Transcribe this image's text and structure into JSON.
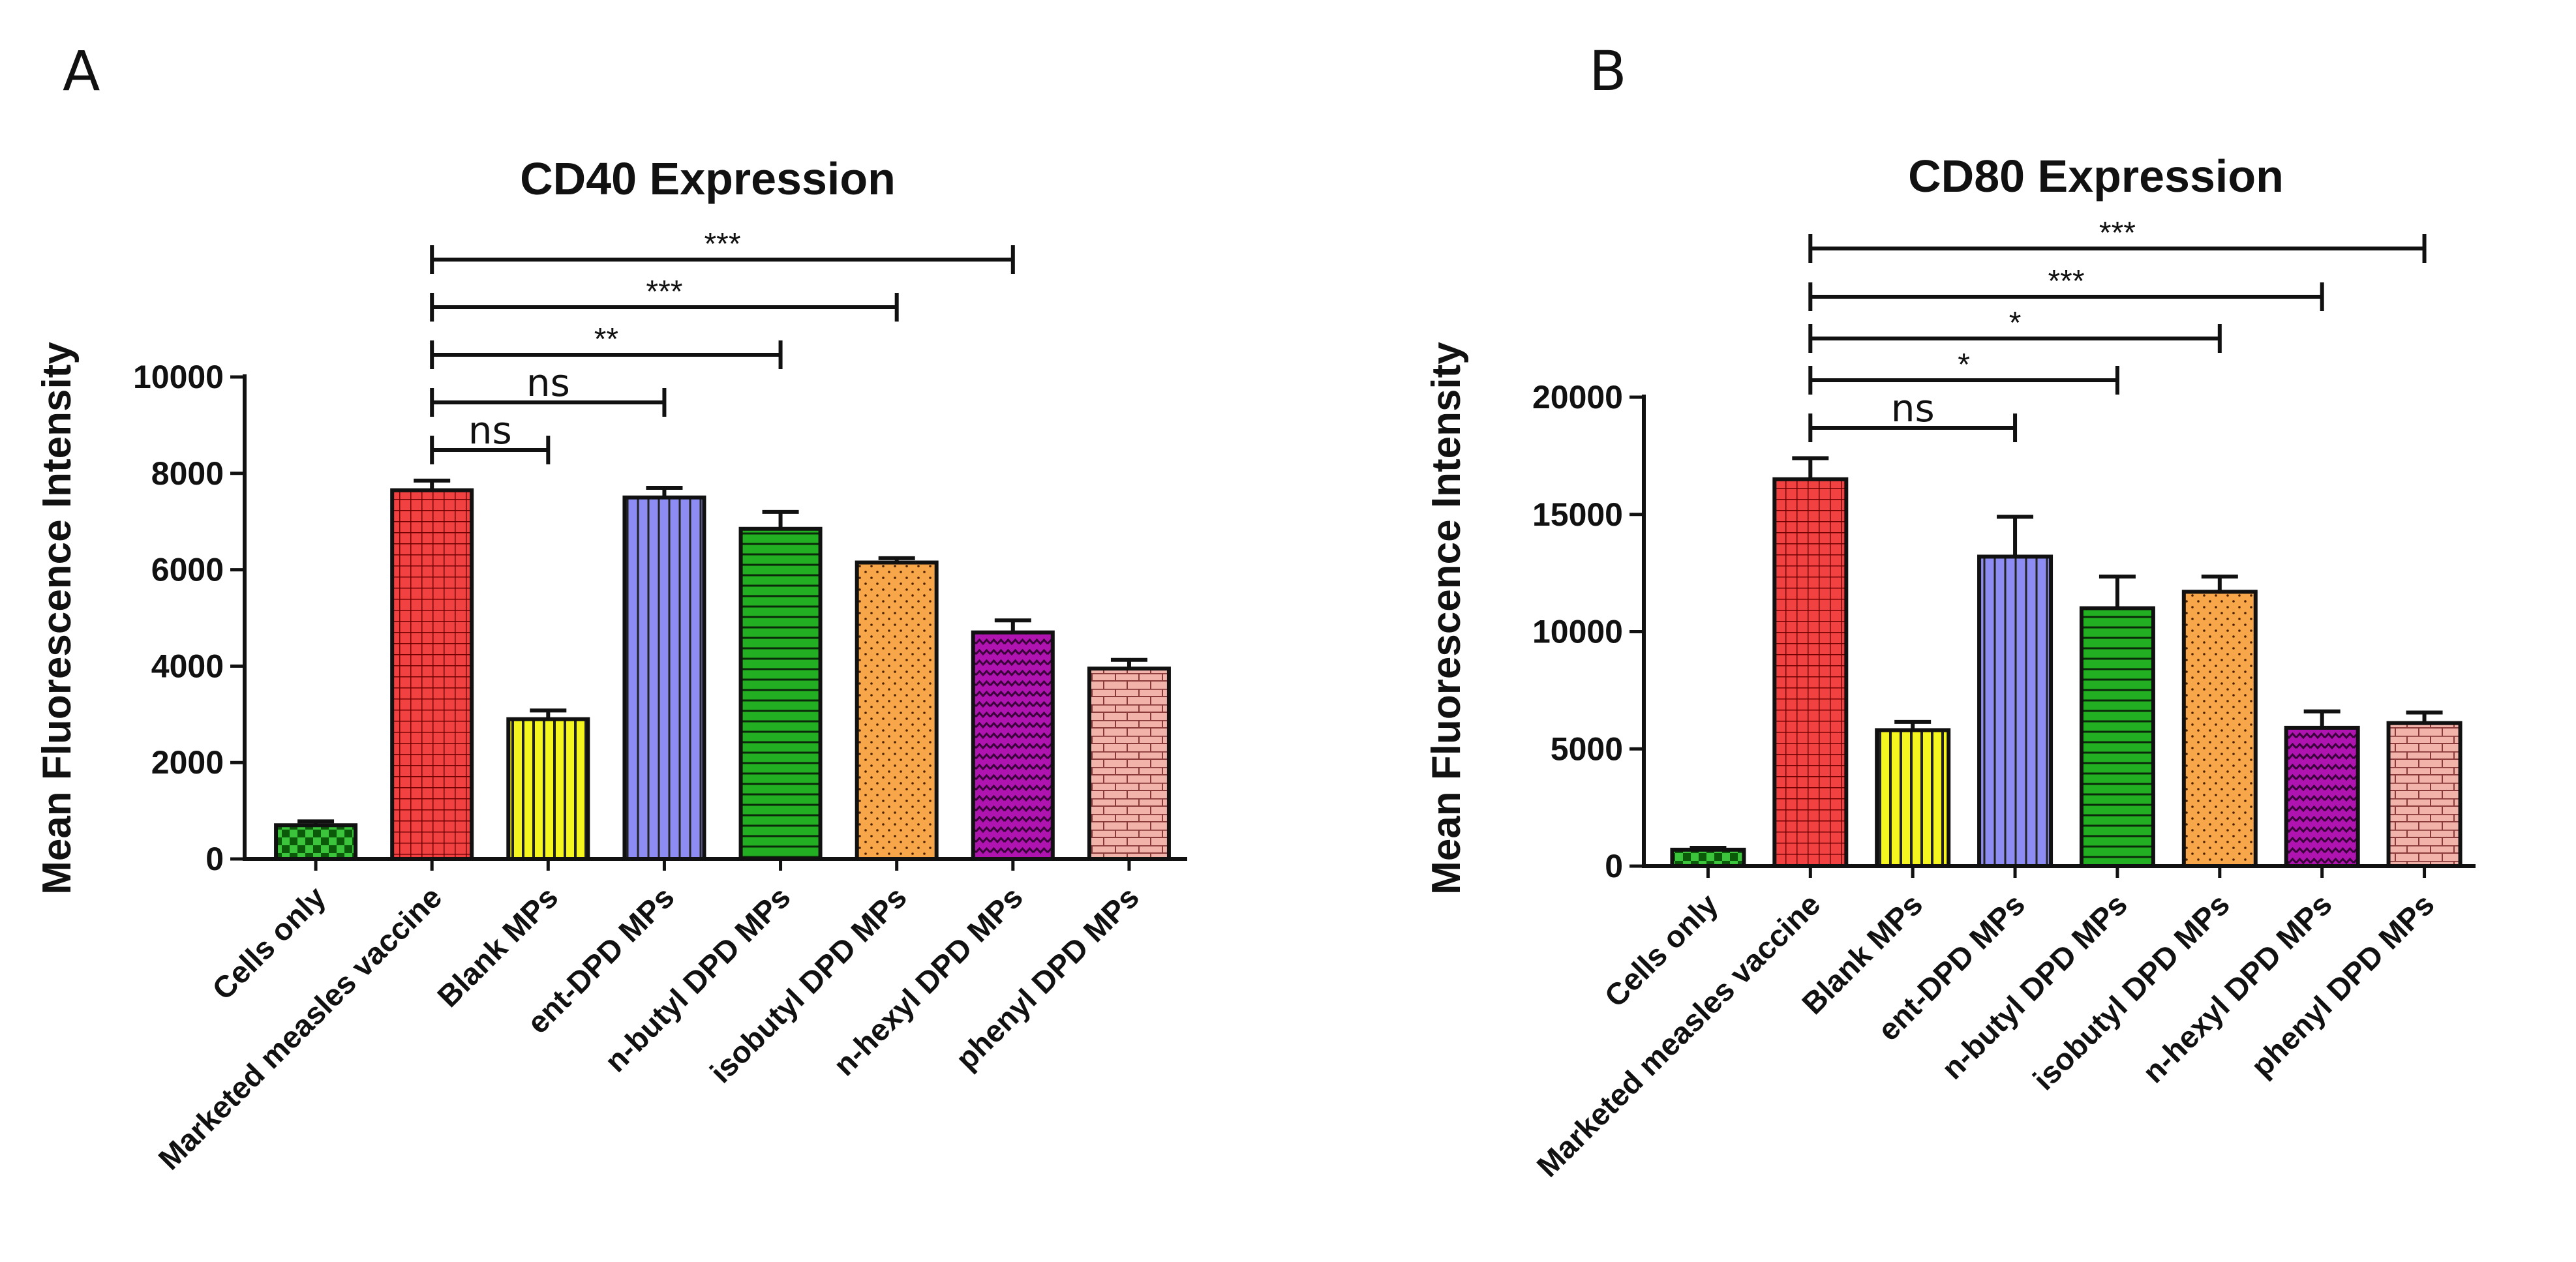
{
  "panels": {
    "a": {
      "letter": "A"
    },
    "b": {
      "letter": "B"
    }
  },
  "chart_data": [
    {
      "type": "bar",
      "title": "CD40 Expression",
      "ylabel": "Mean Fluorescence Intensity",
      "ylim": [
        0,
        10000
      ],
      "yticks": [
        "0",
        "2000",
        "4000",
        "6000",
        "8000",
        "10000"
      ],
      "categories": [
        "Cells only",
        "Marketed measles vaccine",
        "Blank MPs",
        "ent-DPD MPs",
        "n-butyl DPD MPs",
        "isobutyl DPD MPs",
        "n-hexyl DPD MPs",
        "phenyl DPD MPs"
      ],
      "values": [
        700,
        7650,
        2900,
        7500,
        6850,
        6150,
        4700,
        3950
      ],
      "errors": [
        80,
        200,
        180,
        200,
        350,
        90,
        250,
        180
      ],
      "colors": [
        "#3cc43c",
        "#f24141",
        "#f5f51f",
        "#8c8cf2",
        "#22b022",
        "#f7a64a",
        "#b014b0",
        "#f2b3ab"
      ],
      "patterns": [
        "checker",
        "grid",
        "vlines",
        "vlines",
        "hlines",
        "dots",
        "waves",
        "bricks"
      ],
      "comparisons": [
        {
          "from": 1,
          "to": 2,
          "label": "ns"
        },
        {
          "from": 1,
          "to": 3,
          "label": "ns"
        },
        {
          "from": 1,
          "to": 4,
          "label": "**"
        },
        {
          "from": 1,
          "to": 5,
          "label": "***"
        },
        {
          "from": 1,
          "to": 6,
          "label": "***"
        }
      ]
    },
    {
      "type": "bar",
      "title": "CD80 Expression",
      "ylabel": "Mean Fluorescence Intensity",
      "ylim": [
        0,
        20000
      ],
      "yticks": [
        "0",
        "5000",
        "10000",
        "15000",
        "20000"
      ],
      "categories": [
        "Cells only",
        "Marketed measles vaccine",
        "Blank MPs",
        "ent-DPD MPs",
        "n-butyl DPD MPs",
        "isobutyl DPD MPs",
        "n-hexyl DPD MPs",
        "phenyl DPD MPs"
      ],
      "values": [
        700,
        16500,
        5800,
        13200,
        11000,
        11700,
        5900,
        6100
      ],
      "errors": [
        80,
        900,
        350,
        1700,
        1350,
        650,
        700,
        450
      ],
      "colors": [
        "#3cc43c",
        "#f24141",
        "#f5f51f",
        "#8c8cf2",
        "#22b022",
        "#f7a64a",
        "#b014b0",
        "#f2b3ab"
      ],
      "patterns": [
        "checker",
        "grid",
        "vlines",
        "vlines",
        "hlines",
        "dots",
        "waves",
        "bricks"
      ],
      "comparisons": [
        {
          "from": 1,
          "to": 3,
          "label": "ns"
        },
        {
          "from": 1,
          "to": 4,
          "label": "*"
        },
        {
          "from": 1,
          "to": 5,
          "label": "*"
        },
        {
          "from": 1,
          "to": 6,
          "label": "***"
        },
        {
          "from": 1,
          "to": 7,
          "label": "***"
        }
      ]
    }
  ]
}
